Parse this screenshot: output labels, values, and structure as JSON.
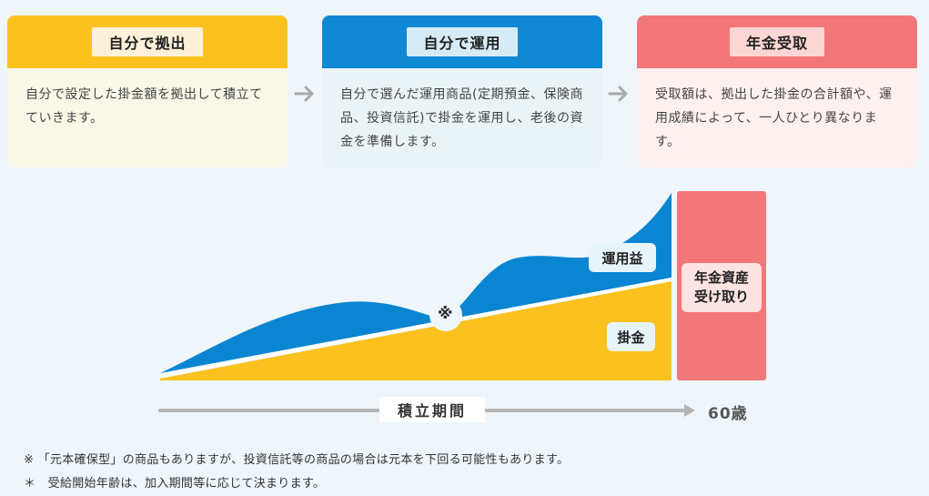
{
  "steps": [
    {
      "label": "自分で拠出",
      "description": "自分で設定した掛金額を拠出して積立てていきます。",
      "head_color": "#fbc21f",
      "label_bg": "#fdf0d9",
      "body_bg": "#f8f7e8"
    },
    {
      "label": "自分で運用",
      "description": "自分で選んだ運用商品(定期預金、保険商品、投資信託)で掛金を運用し、老後の資金を準備します。",
      "head_color": "#1088d4",
      "label_bg": "#d5ecf6",
      "body_bg": "#eaf4f7"
    },
    {
      "label": "年金受取",
      "description": "受取額は、拠出した掛金の合計額や、運用成績によって、一人ひとり異なります。",
      "head_color": "#f27779",
      "label_bg": "#fcd6d4",
      "body_bg": "#fcf1ef"
    }
  ],
  "arrow_icon": "right-arrow-icon",
  "diagram": {
    "gains_label": "運用益",
    "contributions_label": "掛金",
    "note_mark": "※",
    "payout_label": "年金資産\n受け取り",
    "period_label": "積立期間",
    "age_label": "60歳",
    "colors": {
      "gains": "#0a85d2",
      "contributions": "#fbc21f",
      "payout": "#f27779",
      "axis": "#b5b5b5"
    }
  },
  "notes": [
    "※ 「元本確保型」の商品もありますが、投資信託等の商品の場合は元本を下回る可能性もあります。",
    "＊　受給開始年齢は、加入期間等に応じて決まります。"
  ]
}
